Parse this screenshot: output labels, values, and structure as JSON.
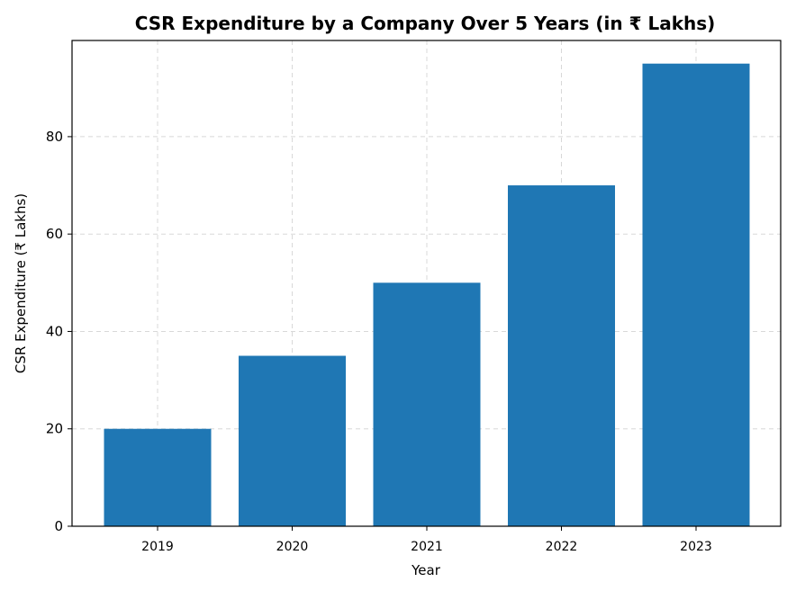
{
  "chart_data": {
    "type": "bar",
    "title": "CSR Expenditure by a Company Over 5 Years (in ₹ Lakhs)",
    "xlabel": "Year",
    "ylabel": "CSR Expenditure (₹ Lakhs)",
    "categories": [
      "2019",
      "2020",
      "2021",
      "2022",
      "2023"
    ],
    "values": [
      20,
      35,
      50,
      70,
      95
    ],
    "ylim": [
      0,
      99.75
    ],
    "yticks": [
      0,
      20,
      40,
      60,
      80
    ],
    "ytick_labels": [
      "0",
      "20",
      "40",
      "60",
      "80"
    ],
    "grid": true,
    "bar_color": "#1f77b4"
  }
}
